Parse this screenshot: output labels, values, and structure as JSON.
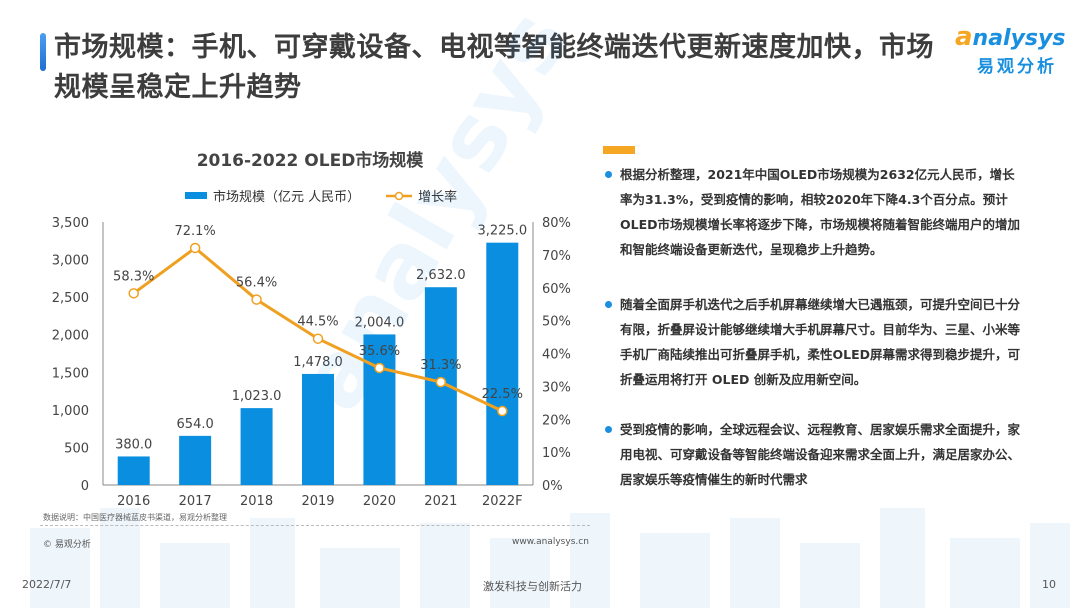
{
  "header": {
    "title": "市场规模：手机、可穿戴设备、电视等智能终端迭代更新速度加快，市场规模呈稳定上升趋势",
    "logo_en": "nalysys",
    "logo_en_initial": "a",
    "logo_cn": "易观分析"
  },
  "chart_data": {
    "type": "bar",
    "title": "2016-2022 OLED市场规模",
    "categories": [
      "2016",
      "2017",
      "2018",
      "2019",
      "2020",
      "2021",
      "2022F"
    ],
    "series": [
      {
        "name": "市场规模（亿元 人民币）",
        "type": "bar",
        "axis": "left",
        "color": "#0a8fe0",
        "values": [
          380.0,
          654.0,
          1023.0,
          1478.0,
          2004.0,
          2632.0,
          3225.0
        ],
        "labels": [
          "380.0",
          "654.0",
          "1,023.0",
          "1,478.0",
          "2,004.0",
          "2,632.0",
          "3,225.0"
        ]
      },
      {
        "name": "增长率",
        "type": "line",
        "axis": "right",
        "color": "#f0a020",
        "values": [
          58.3,
          72.1,
          56.4,
          44.5,
          35.6,
          31.3,
          22.5
        ],
        "labels": [
          "58.3%",
          "72.1%",
          "56.4%",
          "44.5%",
          "35.6%",
          "31.3%",
          "22.5%"
        ]
      }
    ],
    "y_left": {
      "range": [
        0,
        3500
      ],
      "ticks": [
        "0",
        "500",
        "1,000",
        "1,500",
        "2,000",
        "2,500",
        "3,000",
        "3,500"
      ]
    },
    "y_right": {
      "range": [
        0,
        80
      ],
      "ticks": [
        "0%",
        "10%",
        "20%",
        "30%",
        "40%",
        "50%",
        "60%",
        "70%",
        "80%"
      ]
    },
    "xlabel": "",
    "ylabel": "",
    "grid": false,
    "legend": "top"
  },
  "chart_notes": {
    "source": "数据说明：中国医疗器械蓝皮书渠道，易观分析整理",
    "copyright": "© 易观分析",
    "website": "www.analysys.cn"
  },
  "bullets": [
    "根据分析整理，2021年中国OLED市场规模为2632亿元人民币，增长率为31.3%，受到疫情的影响，相较2020年下降4.3个百分点。预计OLED市场规模增长率将逐步下降，市场规模将随着智能终端用户的增加和智能终端设备更新迭代，呈现稳步上升趋势。",
    "随着全面屏手机迭代之后手机屏幕继续增大已遇瓶颈，可提升空间已十分有限，折叠屏设计能够继续增大手机屏幕尺寸。目前华为、三星、小米等手机厂商陆续推出可折叠屏手机，柔性OLED屏幕需求得到稳步提升，可折叠运用将打开 OLED 创新及应用新空间。",
    "受到疫情的影响，全球远程会议、远程教育、居家娱乐需求全面提升，家用电视、可穿戴设备等智能终端设备迎来需求全面上升，满足居家办公、居家娱乐等疫情催生的新时代需求"
  ],
  "footer": {
    "date": "2022/7/7",
    "slogan": "激发科技与创新活力",
    "page": "10"
  }
}
